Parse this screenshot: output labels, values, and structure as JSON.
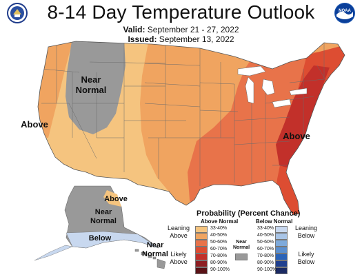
{
  "header": {
    "title": "8-14 Day Temperature Outlook",
    "valid_label": "Valid:",
    "valid_value": "September 21 - 27, 2022",
    "issued_label": "Issued:",
    "issued_value": "September 13, 2022"
  },
  "logos": {
    "left_icon": "commerce-seal-icon",
    "right_icon": "noaa-logo-icon",
    "right_text": "NOAA"
  },
  "map_labels": {
    "near_normal_west": "Near Normal",
    "above_west": "Above",
    "above_east": "Above",
    "alaska_above": "Above",
    "alaska_near_normal": "Near Normal",
    "alaska_below": "Below",
    "hawaii_near_normal": "Near Normal"
  },
  "legend": {
    "title": "Probability (Percent Chance)",
    "above_header": "Above Normal",
    "below_header": "Below Normal",
    "near_normal": "Near Normal",
    "leaning_above": "Leaning Above",
    "likely_above": "Likely Above",
    "leaning_below": "Leaning Below",
    "likely_below": "Likely Below",
    "above_bins": [
      {
        "label": "33-40%",
        "color": "#f5c47f"
      },
      {
        "label": "40-50%",
        "color": "#f0a460"
      },
      {
        "label": "50-60%",
        "color": "#e8734a"
      },
      {
        "label": "60-70%",
        "color": "#dd4d32"
      },
      {
        "label": "70-80%",
        "color": "#c2302a"
      },
      {
        "label": "80-90%",
        "color": "#8e1e22"
      },
      {
        "label": "90-100%",
        "color": "#5a1216"
      }
    ],
    "below_bins": [
      {
        "label": "33-40%",
        "color": "#c8d8ef"
      },
      {
        "label": "40-50%",
        "color": "#a8c4e6"
      },
      {
        "label": "50-60%",
        "color": "#7eaadb"
      },
      {
        "label": "60-70%",
        "color": "#5b8fcf"
      },
      {
        "label": "70-80%",
        "color": "#2a63b8"
      },
      {
        "label": "80-90%",
        "color": "#1f3f8f"
      },
      {
        "label": "90-100%",
        "color": "#1b2a63"
      }
    ],
    "near_normal_color": "#999999"
  },
  "colors": {
    "ocean": "#ffffff",
    "border": "#6b6b6b"
  }
}
